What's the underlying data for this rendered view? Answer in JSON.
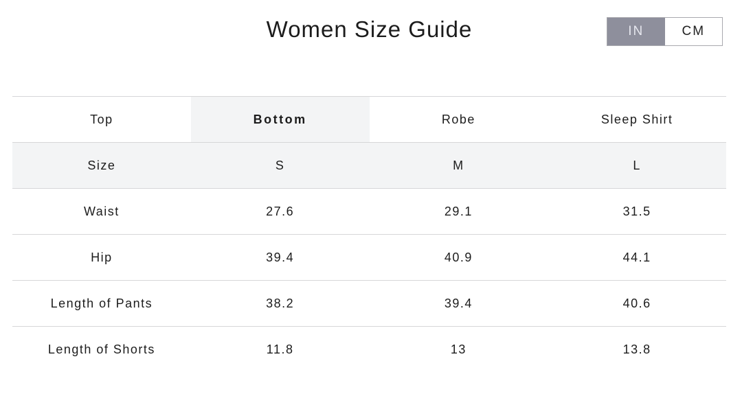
{
  "title": "Women Size Guide",
  "units": {
    "options": [
      "IN",
      "CM"
    ],
    "selected": "IN"
  },
  "tabs": [
    {
      "label": "Top",
      "selected": false
    },
    {
      "label": "Bottom",
      "selected": true
    },
    {
      "label": "Robe",
      "selected": false
    },
    {
      "label": "Sleep Shirt",
      "selected": false
    }
  ],
  "table": {
    "header": [
      "Size",
      "S",
      "M",
      "L"
    ],
    "rows": [
      [
        "Waist",
        "27.6",
        "29.1",
        "31.5"
      ],
      [
        "Hip",
        "39.4",
        "40.9",
        "44.1"
      ],
      [
        "Length of Pants",
        "38.2",
        "39.4",
        "40.6"
      ],
      [
        "Length of Shorts",
        "11.8",
        "13",
        "13.8"
      ]
    ]
  },
  "colors": {
    "active_unit_bg": "#8e8f9c",
    "highlight_bg": "#f3f4f5",
    "border": "#d6d6d8"
  }
}
